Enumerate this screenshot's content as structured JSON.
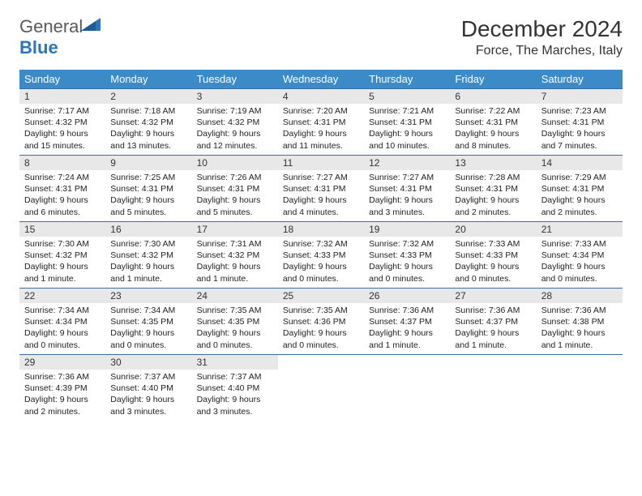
{
  "logo": {
    "general": "General",
    "blue": "Blue"
  },
  "title": "December 2024",
  "location": "Force, The Marches, Italy",
  "colors": {
    "header_bg": "#3b8bc9",
    "header_fg": "#ffffff",
    "daynum_bg": "#e8e8e8",
    "border": "#3b6fa0",
    "logo_blue": "#2a75bb"
  },
  "weekdays": [
    "Sunday",
    "Monday",
    "Tuesday",
    "Wednesday",
    "Thursday",
    "Friday",
    "Saturday"
  ],
  "days": [
    {
      "n": 1,
      "sunrise": "7:17 AM",
      "sunset": "4:32 PM",
      "daylight": "9 hours and 15 minutes."
    },
    {
      "n": 2,
      "sunrise": "7:18 AM",
      "sunset": "4:32 PM",
      "daylight": "9 hours and 13 minutes."
    },
    {
      "n": 3,
      "sunrise": "7:19 AM",
      "sunset": "4:32 PM",
      "daylight": "9 hours and 12 minutes."
    },
    {
      "n": 4,
      "sunrise": "7:20 AM",
      "sunset": "4:31 PM",
      "daylight": "9 hours and 11 minutes."
    },
    {
      "n": 5,
      "sunrise": "7:21 AM",
      "sunset": "4:31 PM",
      "daylight": "9 hours and 10 minutes."
    },
    {
      "n": 6,
      "sunrise": "7:22 AM",
      "sunset": "4:31 PM",
      "daylight": "9 hours and 8 minutes."
    },
    {
      "n": 7,
      "sunrise": "7:23 AM",
      "sunset": "4:31 PM",
      "daylight": "9 hours and 7 minutes."
    },
    {
      "n": 8,
      "sunrise": "7:24 AM",
      "sunset": "4:31 PM",
      "daylight": "9 hours and 6 minutes."
    },
    {
      "n": 9,
      "sunrise": "7:25 AM",
      "sunset": "4:31 PM",
      "daylight": "9 hours and 5 minutes."
    },
    {
      "n": 10,
      "sunrise": "7:26 AM",
      "sunset": "4:31 PM",
      "daylight": "9 hours and 5 minutes."
    },
    {
      "n": 11,
      "sunrise": "7:27 AM",
      "sunset": "4:31 PM",
      "daylight": "9 hours and 4 minutes."
    },
    {
      "n": 12,
      "sunrise": "7:27 AM",
      "sunset": "4:31 PM",
      "daylight": "9 hours and 3 minutes."
    },
    {
      "n": 13,
      "sunrise": "7:28 AM",
      "sunset": "4:31 PM",
      "daylight": "9 hours and 2 minutes."
    },
    {
      "n": 14,
      "sunrise": "7:29 AM",
      "sunset": "4:31 PM",
      "daylight": "9 hours and 2 minutes."
    },
    {
      "n": 15,
      "sunrise": "7:30 AM",
      "sunset": "4:32 PM",
      "daylight": "9 hours and 1 minute."
    },
    {
      "n": 16,
      "sunrise": "7:30 AM",
      "sunset": "4:32 PM",
      "daylight": "9 hours and 1 minute."
    },
    {
      "n": 17,
      "sunrise": "7:31 AM",
      "sunset": "4:32 PM",
      "daylight": "9 hours and 1 minute."
    },
    {
      "n": 18,
      "sunrise": "7:32 AM",
      "sunset": "4:33 PM",
      "daylight": "9 hours and 0 minutes."
    },
    {
      "n": 19,
      "sunrise": "7:32 AM",
      "sunset": "4:33 PM",
      "daylight": "9 hours and 0 minutes."
    },
    {
      "n": 20,
      "sunrise": "7:33 AM",
      "sunset": "4:33 PM",
      "daylight": "9 hours and 0 minutes."
    },
    {
      "n": 21,
      "sunrise": "7:33 AM",
      "sunset": "4:34 PM",
      "daylight": "9 hours and 0 minutes."
    },
    {
      "n": 22,
      "sunrise": "7:34 AM",
      "sunset": "4:34 PM",
      "daylight": "9 hours and 0 minutes."
    },
    {
      "n": 23,
      "sunrise": "7:34 AM",
      "sunset": "4:35 PM",
      "daylight": "9 hours and 0 minutes."
    },
    {
      "n": 24,
      "sunrise": "7:35 AM",
      "sunset": "4:35 PM",
      "daylight": "9 hours and 0 minutes."
    },
    {
      "n": 25,
      "sunrise": "7:35 AM",
      "sunset": "4:36 PM",
      "daylight": "9 hours and 0 minutes."
    },
    {
      "n": 26,
      "sunrise": "7:36 AM",
      "sunset": "4:37 PM",
      "daylight": "9 hours and 1 minute."
    },
    {
      "n": 27,
      "sunrise": "7:36 AM",
      "sunset": "4:37 PM",
      "daylight": "9 hours and 1 minute."
    },
    {
      "n": 28,
      "sunrise": "7:36 AM",
      "sunset": "4:38 PM",
      "daylight": "9 hours and 1 minute."
    },
    {
      "n": 29,
      "sunrise": "7:36 AM",
      "sunset": "4:39 PM",
      "daylight": "9 hours and 2 minutes."
    },
    {
      "n": 30,
      "sunrise": "7:37 AM",
      "sunset": "4:40 PM",
      "daylight": "9 hours and 3 minutes."
    },
    {
      "n": 31,
      "sunrise": "7:37 AM",
      "sunset": "4:40 PM",
      "daylight": "9 hours and 3 minutes."
    }
  ],
  "labels": {
    "sunrise": "Sunrise:",
    "sunset": "Sunset:",
    "daylight": "Daylight:"
  },
  "first_weekday_index": 0,
  "total_cells": 35
}
